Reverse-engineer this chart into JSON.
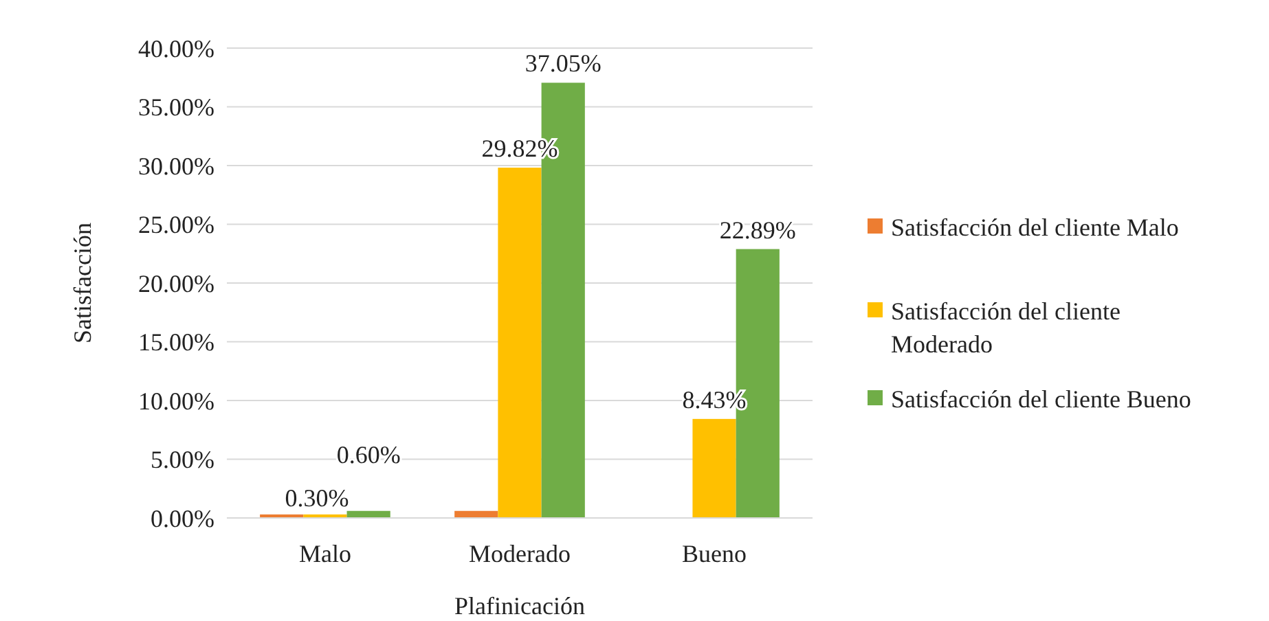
{
  "chart_data": {
    "type": "bar",
    "xlabel": "Plafinicación",
    "ylabel": "Satisfacción",
    "categories": [
      "Malo",
      "Moderado",
      "Bueno"
    ],
    "series": [
      {
        "name": "Satisfacción del cliente Malo",
        "color": "#ed7d31",
        "values": [
          0.3,
          0.6,
          null
        ],
        "value_labels": [
          null,
          null,
          null
        ]
      },
      {
        "name": "Satisfacción del cliente Moderado",
        "color": "#ffc000",
        "values": [
          0.3,
          29.82,
          8.43
        ],
        "value_labels": [
          "0.30%",
          "29.82%",
          "8.43%"
        ]
      },
      {
        "name": "Satisfacción del cliente Bueno",
        "color": "#70ad47",
        "values": [
          0.6,
          37.05,
          22.89
        ],
        "value_labels": [
          "0.60%",
          "37.05%",
          "22.89%"
        ]
      }
    ],
    "ylim": [
      0,
      40
    ],
    "yticks": [
      {
        "value": 0,
        "label": "0.00%"
      },
      {
        "value": 5,
        "label": "5.00%"
      },
      {
        "value": 10,
        "label": "10.00%"
      },
      {
        "value": 15,
        "label": "15.00%"
      },
      {
        "value": 20,
        "label": "20.00%"
      },
      {
        "value": 25,
        "label": "25.00%"
      },
      {
        "value": 30,
        "label": "30.00%"
      },
      {
        "value": 35,
        "label": "35.00%"
      },
      {
        "value": 40,
        "label": "40.00%"
      }
    ],
    "grid": "y",
    "legend": "right"
  }
}
